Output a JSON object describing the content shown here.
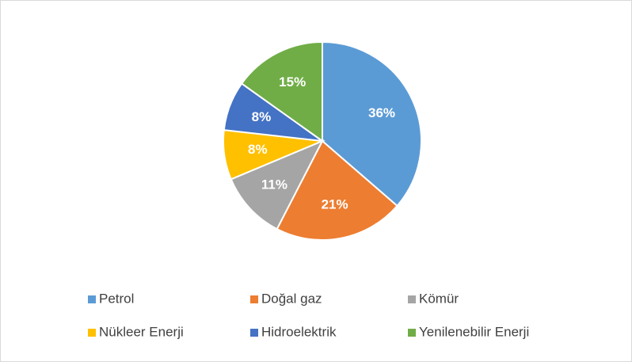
{
  "chart_data": {
    "type": "pie",
    "categories": [
      "Petrol",
      "Doğal gaz",
      "Kömür",
      "Nükleer Enerji",
      "Hidroelektrik",
      "Yenilenebilir Enerji"
    ],
    "values": [
      36,
      21,
      11,
      8,
      8,
      15
    ],
    "value_labels": [
      "36%",
      "21%",
      "11%",
      "8%",
      "8%",
      "15%"
    ],
    "colors": [
      "#5b9bd5",
      "#ed7d31",
      "#a5a5a5",
      "#ffc000",
      "#4472c4",
      "#70ad47"
    ],
    "legend": "bottom"
  }
}
